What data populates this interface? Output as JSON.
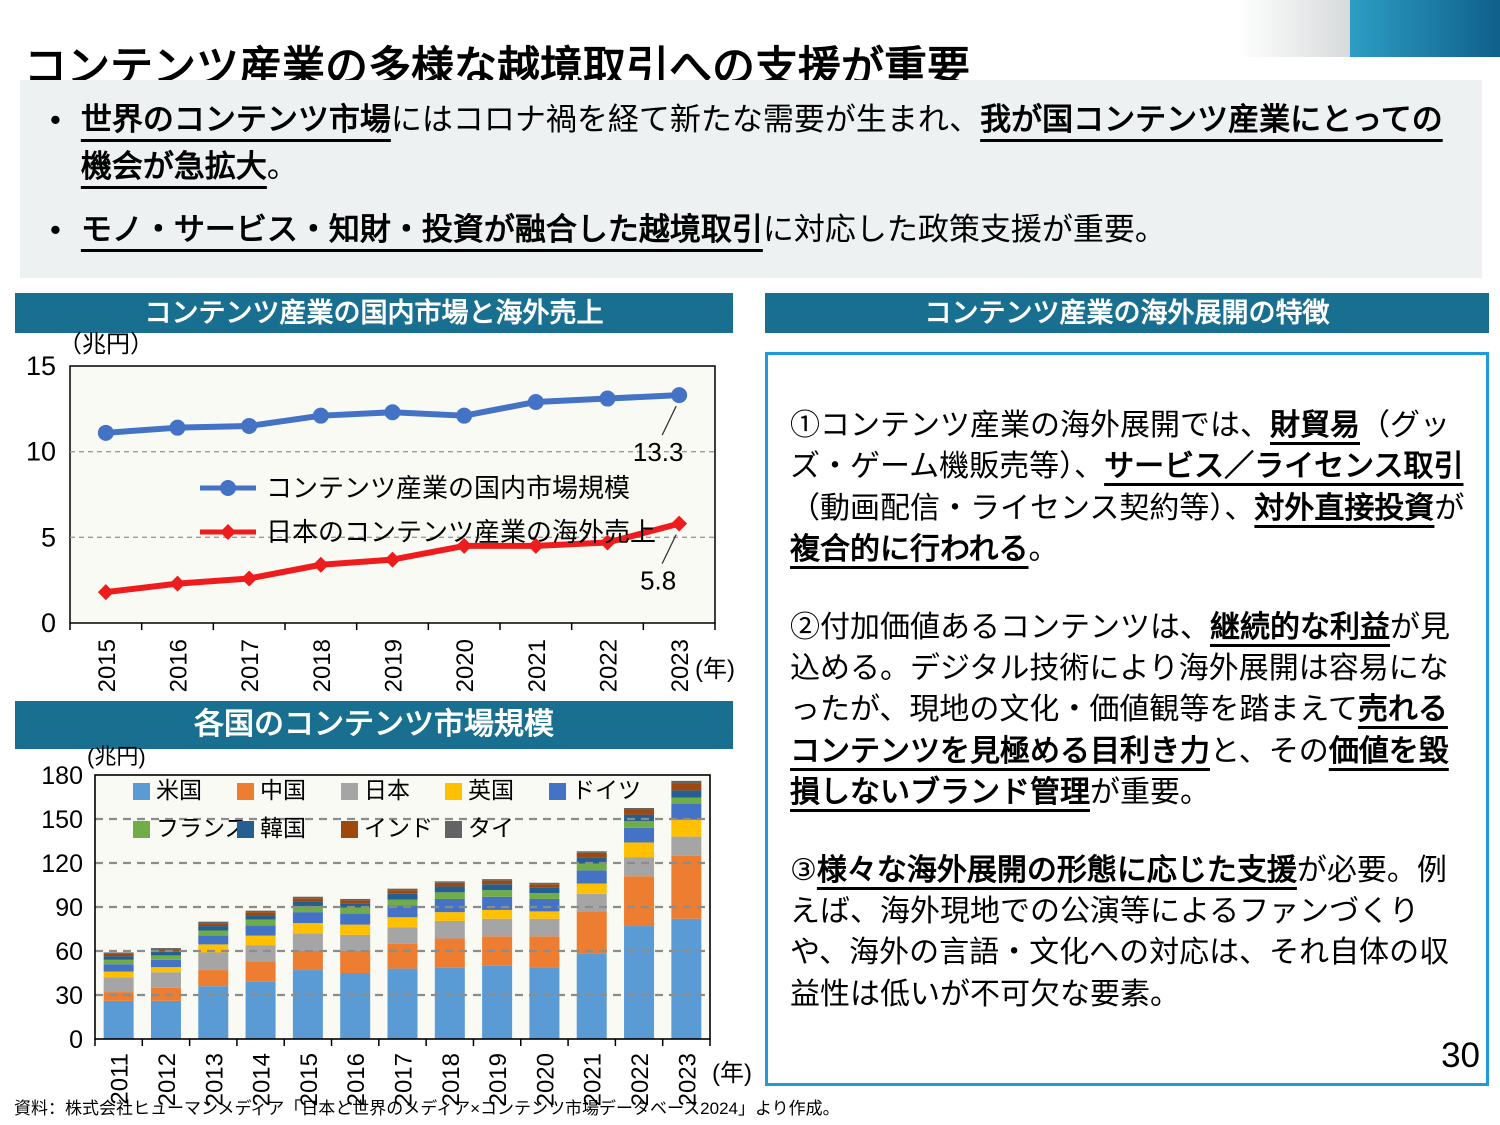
{
  "title": "コンテンツ産業の多様な越境取引への支援が重要",
  "bullets": [
    {
      "segments": [
        {
          "t": "世界のコンテンツ市場",
          "b": true,
          "u": true
        },
        {
          "t": "にはコロナ禍を経て新たな需要が生まれ、"
        },
        {
          "t": "我が国コンテンツ産業にとっての機会が急拡大",
          "b": true,
          "u": true
        },
        {
          "t": "。"
        }
      ]
    },
    {
      "segments": [
        {
          "t": "モノ・サービス・知財・投資が融合した越境取引",
          "b": true,
          "u": true
        },
        {
          "t": "に対応した政策支援が重要。"
        }
      ]
    }
  ],
  "panels": {
    "domestic_chart": {
      "header": "コンテンツ産業の国内市場と海外売上"
    },
    "country_chart": {
      "header": "各国のコンテンツ市場規模"
    },
    "features": {
      "header": "コンテンツ産業の海外展開の特徴",
      "paragraphs": [
        {
          "segments": [
            {
              "t": "①コンテンツ産業の海外展開では、"
            },
            {
              "t": "財貿易",
              "b": true,
              "u": true
            },
            {
              "t": "（グッズ・ゲーム機販売等）、"
            },
            {
              "t": "サービス／ライセンス取引",
              "b": true,
              "u": true
            },
            {
              "t": "（動画配信・ライセンス契約等）、"
            },
            {
              "t": "対外直接投資",
              "b": true,
              "u": true
            },
            {
              "t": "が"
            },
            {
              "t": "複合的に行われる",
              "b": true,
              "u": true
            },
            {
              "t": "。"
            }
          ]
        },
        {
          "segments": [
            {
              "t": "②付加価値あるコンテンツは、"
            },
            {
              "t": "継続的な利益",
              "b": true,
              "u": true
            },
            {
              "t": "が見込める。デジタル技術により海外展開は容易になったが、現地の文化・価値観等を踏まえて"
            },
            {
              "t": "売れるコンテンツを見極める目利き力",
              "b": true,
              "u": true
            },
            {
              "t": "と、その"
            },
            {
              "t": "価値を毀損しないブランド管理",
              "b": true,
              "u": true
            },
            {
              "t": "が重要。"
            }
          ]
        },
        {
          "segments": [
            {
              "t": "③"
            },
            {
              "t": "様々な海外展開の形態に応じた支援",
              "b": true,
              "u": true
            },
            {
              "t": "が必要。例えば、海外現地での公演等によるファンづくりや、海外の言語・文化への対応は、それ自体の収益性は低いが不可欠な要素。"
            }
          ]
        }
      ]
    }
  },
  "chart_data": [
    {
      "type": "line",
      "title": "コンテンツ産業の国内市場と海外売上",
      "unit_label": "（兆円）",
      "x_axis_label": "(年)",
      "x": [
        "2015",
        "2016",
        "2017",
        "2018",
        "2019",
        "2020",
        "2021",
        "2022",
        "2023"
      ],
      "ylim": [
        0,
        15
      ],
      "yticks": [
        0,
        5,
        10,
        15
      ],
      "grid": "dashed-horizontal",
      "legend_position": "inside-center",
      "series": [
        {
          "name": "コンテンツ産業の国内市場規模",
          "color": "#4472C4",
          "marker": "circle",
          "values": [
            11.1,
            11.4,
            11.5,
            12.1,
            12.3,
            12.1,
            12.9,
            13.1,
            13.3
          ]
        },
        {
          "name": "日本のコンテンツ産業の海外売上",
          "color": "#EE1C1C",
          "marker": "diamond",
          "values": [
            1.8,
            2.3,
            2.6,
            3.4,
            3.7,
            4.5,
            4.5,
            4.7,
            5.8
          ]
        }
      ],
      "annotations": [
        {
          "text": "13.3",
          "series": 0,
          "index": 8
        },
        {
          "text": "5.8",
          "series": 1,
          "index": 8
        }
      ]
    },
    {
      "type": "stacked-bar",
      "title": "各国のコンテンツ市場規模",
      "unit_label": "(兆円)",
      "x_axis_label": "(年)",
      "categories": [
        "2011",
        "2012",
        "2013",
        "2014",
        "2015",
        "2016",
        "2017",
        "2018",
        "2019",
        "2020",
        "2021",
        "2022",
        "2023"
      ],
      "ylim": [
        0,
        180
      ],
      "yticks": [
        0,
        30,
        60,
        90,
        120,
        150,
        180
      ],
      "grid": "dashed-horizontal",
      "legend_position": "inside-top",
      "series": [
        {
          "name": "米国",
          "color": "#5B9BD5",
          "values": [
            26,
            26,
            36,
            39,
            47,
            45,
            48,
            48.5,
            50,
            49,
            58,
            77,
            82
          ]
        },
        {
          "name": "中国",
          "color": "#ED7D31",
          "values": [
            6,
            9,
            11,
            14,
            13,
            15,
            17,
            20,
            20,
            21,
            29,
            34,
            43
          ]
        },
        {
          "name": "日本",
          "color": "#A5A5A5",
          "values": [
            10,
            10.5,
            12,
            11,
            12,
            11,
            11,
            12,
            12,
            12,
            12,
            13,
            13
          ]
        },
        {
          "name": "英国",
          "color": "#FFC000",
          "values": [
            4,
            3.5,
            5.5,
            6.5,
            7,
            7,
            7,
            6,
            6,
            5,
            7,
            10,
            11.5
          ]
        },
        {
          "name": "ドイツ",
          "color": "#4472C4",
          "values": [
            5,
            5,
            6,
            7,
            7.5,
            7.5,
            8,
            9,
            9,
            8.5,
            9,
            10,
            11
          ]
        },
        {
          "name": "フランス",
          "color": "#70AD47",
          "values": [
            3,
            3,
            3.5,
            4,
            4,
            4,
            4,
            4.5,
            4.5,
            4,
            4.5,
            4.5,
            4
          ]
        },
        {
          "name": "韓国",
          "color": "#255E91",
          "values": [
            2.5,
            2.5,
            3,
            3,
            3.5,
            3,
            4,
            4,
            4,
            4,
            4.5,
            4.5,
            5
          ]
        },
        {
          "name": "インド",
          "color": "#9E480E",
          "values": [
            1.5,
            1.5,
            2,
            2,
            2,
            2,
            2.5,
            2.5,
            2.5,
            2,
            3,
            3.5,
            5
          ]
        },
        {
          "name": "タイ",
          "color": "#636363",
          "values": [
            1,
            1,
            1,
            1,
            1,
            1,
            1,
            1,
            1,
            1,
            1,
            1,
            1.5
          ]
        }
      ]
    }
  ],
  "footer": {
    "source": "資料：株式会社ヒューマンメディア「日本と世界のメディア×コンテンツ市場データベース2024」より作成。",
    "page_number": "30"
  },
  "colors": {
    "header_teal": "#186F90",
    "accent_blue": "#1E9CD7",
    "bullet_bg": "#EEF1F1",
    "plot_bg": "#FAFAF4"
  }
}
